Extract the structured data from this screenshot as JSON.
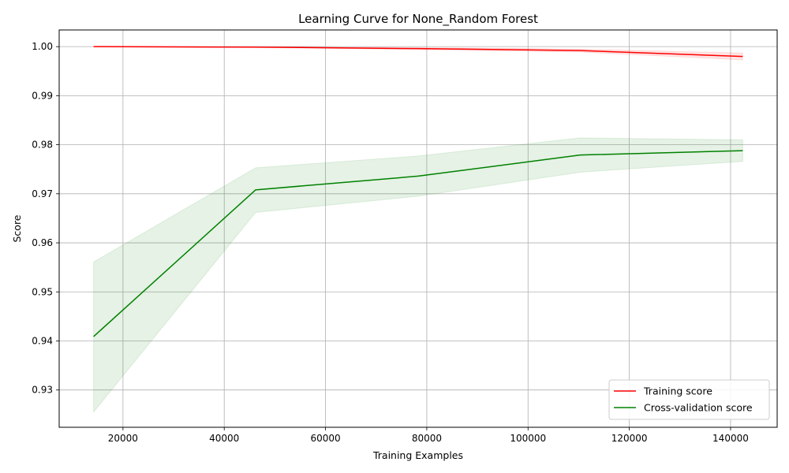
{
  "chart_data": {
    "type": "line",
    "title": "Learning Curve for None_Random Forest",
    "xlabel": "Training Examples",
    "ylabel": "Score",
    "xlim": [
      7400,
      149200
    ],
    "ylim": [
      0.9224,
      1.0034
    ],
    "x_ticks": [
      20000,
      40000,
      60000,
      80000,
      100000,
      120000,
      140000
    ],
    "x_tick_labels": [
      "20000",
      "40000",
      "60000",
      "80000",
      "100000",
      "120000",
      "140000"
    ],
    "y_ticks": [
      0.93,
      0.94,
      0.95,
      0.96,
      0.97,
      0.98,
      0.99,
      1.0
    ],
    "y_tick_labels": [
      "0.93",
      "0.94",
      "0.95",
      "0.96",
      "0.97",
      "0.98",
      "0.99",
      "1.00"
    ],
    "grid": true,
    "legend_position": "bottom-right",
    "x": [
      14200,
      46200,
      78300,
      110300,
      142400
    ],
    "series": [
      {
        "name": "Training score",
        "color": "#ff0000",
        "band_color": "#ff0000",
        "values": [
          1.0,
          0.9999,
          0.9996,
          0.9992,
          0.998
        ],
        "lower": [
          0.99995,
          0.99985,
          0.9994,
          0.9989,
          0.9973
        ],
        "upper": [
          1.00005,
          0.99995,
          0.9998,
          0.9995,
          0.9987
        ]
      },
      {
        "name": "Cross-validation score",
        "color": "#008000",
        "band_color": "#008000",
        "values": [
          0.9409,
          0.9708,
          0.9736,
          0.9779,
          0.9788
        ],
        "lower": [
          0.9255,
          0.9662,
          0.9695,
          0.9744,
          0.9766
        ],
        "upper": [
          0.9561,
          0.9753,
          0.9777,
          0.9814,
          0.981
        ]
      }
    ]
  }
}
